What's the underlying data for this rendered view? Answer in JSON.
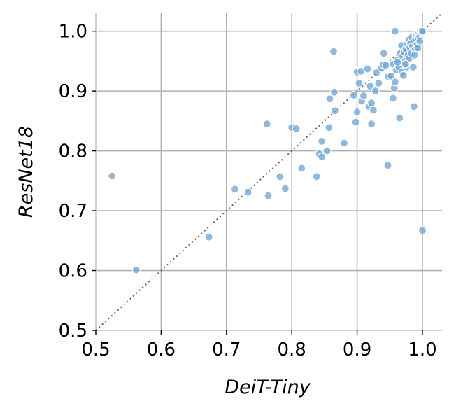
{
  "chart_data": {
    "type": "scatter",
    "title": "",
    "xlabel": "DeiT-Tiny",
    "ylabel": "ResNet18",
    "xlim": [
      0.5,
      1.03
    ],
    "ylim": [
      0.5,
      1.03
    ],
    "xticks": [
      "0.5",
      "0.6",
      "0.7",
      "0.8",
      "0.9",
      "1.0"
    ],
    "yticks": [
      "0.5",
      "0.6",
      "0.7",
      "0.8",
      "0.9",
      "1.0"
    ],
    "grid": true,
    "reference_line": "y = x (dotted)",
    "point_color": "#6fa6d4",
    "point_edge_color": "#ffffff",
    "points": [
      [
        0.525,
        0.758
      ],
      [
        0.562,
        0.601
      ],
      [
        0.673,
        0.656
      ],
      [
        0.713,
        0.736
      ],
      [
        0.733,
        0.731
      ],
      [
        0.762,
        0.845
      ],
      [
        0.764,
        0.725
      ],
      [
        0.782,
        0.757
      ],
      [
        0.79,
        0.737
      ],
      [
        0.8,
        0.839
      ],
      [
        0.807,
        0.837
      ],
      [
        0.815,
        0.771
      ],
      [
        0.838,
        0.757
      ],
      [
        0.842,
        0.795
      ],
      [
        0.846,
        0.79
      ],
      [
        0.846,
        0.816
      ],
      [
        0.854,
        0.8
      ],
      [
        0.857,
        0.839
      ],
      [
        0.858,
        0.887
      ],
      [
        0.864,
        0.966
      ],
      [
        0.865,
        0.898
      ],
      [
        0.866,
        0.867
      ],
      [
        0.88,
        0.813
      ],
      [
        0.895,
        0.893
      ],
      [
        0.898,
        0.848
      ],
      [
        0.9,
        0.865
      ],
      [
        0.9,
        0.932
      ],
      [
        0.903,
        0.913
      ],
      [
        0.906,
        0.933
      ],
      [
        0.907,
        0.883
      ],
      [
        0.91,
        0.892
      ],
      [
        0.916,
        0.937
      ],
      [
        0.918,
        0.874
      ],
      [
        0.92,
        0.908
      ],
      [
        0.922,
        0.845
      ],
      [
        0.922,
        0.88
      ],
      [
        0.925,
        0.868
      ],
      [
        0.928,
        0.9
      ],
      [
        0.93,
        0.931
      ],
      [
        0.933,
        0.913
      ],
      [
        0.937,
        0.938
      ],
      [
        0.94,
        0.944
      ],
      [
        0.941,
        0.963
      ],
      [
        0.944,
        0.943
      ],
      [
        0.947,
        0.776
      ],
      [
        0.948,
        0.924
      ],
      [
        0.952,
        0.925
      ],
      [
        0.955,
        0.945
      ],
      [
        0.955,
        0.888
      ],
      [
        0.957,
        0.905
      ],
      [
        0.958,
        1.0
      ],
      [
        0.958,
        0.915
      ],
      [
        0.96,
        0.935
      ],
      [
        0.962,
        0.952
      ],
      [
        0.964,
        0.94
      ],
      [
        0.965,
        0.855
      ],
      [
        0.966,
        0.963
      ],
      [
        0.968,
        0.976
      ],
      [
        0.969,
        0.932
      ],
      [
        0.97,
        0.958
      ],
      [
        0.971,
        0.926
      ],
      [
        0.972,
        0.965
      ],
      [
        0.974,
        0.95
      ],
      [
        0.975,
        0.97
      ],
      [
        0.976,
        0.94
      ],
      [
        0.977,
        0.979
      ],
      [
        0.978,
        0.96
      ],
      [
        0.979,
        0.985
      ],
      [
        0.98,
        0.955
      ],
      [
        0.981,
        0.973
      ],
      [
        0.982,
        0.98
      ],
      [
        0.983,
        0.963
      ],
      [
        0.984,
        0.99
      ],
      [
        0.985,
        0.975
      ],
      [
        0.986,
        0.94
      ],
      [
        0.987,
        0.874
      ],
      [
        0.988,
        0.983
      ],
      [
        0.989,
        0.97
      ],
      [
        0.99,
        0.993
      ],
      [
        0.991,
        0.985
      ],
      [
        0.992,
        0.978
      ],
      [
        0.993,
        0.995
      ],
      [
        0.994,
        0.988
      ],
      [
        0.995,
        0.998
      ],
      [
        0.996,
        0.992
      ],
      [
        0.997,
        1.0
      ],
      [
        0.998,
        0.997
      ],
      [
        0.999,
        0.999
      ],
      [
        1.0,
        1.0
      ],
      [
        1.0,
        0.667
      ],
      [
        0.996,
        0.983
      ],
      [
        0.993,
        0.972
      ],
      [
        0.988,
        0.96
      ],
      [
        0.974,
        0.945
      ],
      [
        0.962,
        0.948
      ]
    ]
  }
}
